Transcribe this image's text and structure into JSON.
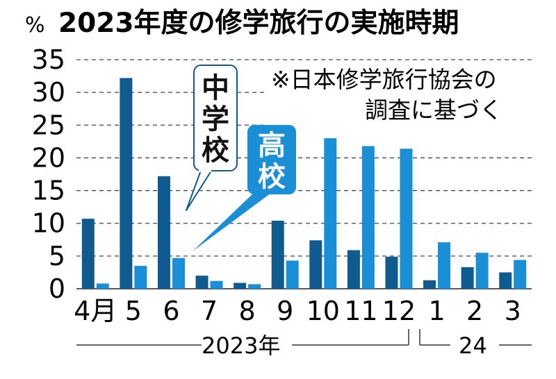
{
  "chart_data": {
    "type": "bar",
    "title": "2023年度の修学旅行の実施時期",
    "ylabel": "%",
    "ylim": [
      0,
      35
    ],
    "yticks": [
      0,
      5,
      10,
      15,
      20,
      25,
      30,
      35
    ],
    "grid": true,
    "categories": [
      "4月",
      "5",
      "6",
      "7",
      "8",
      "9",
      "10",
      "11",
      "12",
      "1",
      "2",
      "3"
    ],
    "series": [
      {
        "name": "中学校",
        "color": "#0f5a8f",
        "values": [
          10.7,
          32.2,
          17.2,
          2.0,
          0.9,
          10.4,
          7.4,
          5.9,
          4.9,
          1.3,
          3.3,
          2.5
        ]
      },
      {
        "name": "高校",
        "color": "#1a8fd6",
        "values": [
          0.8,
          3.5,
          4.7,
          1.2,
          0.7,
          4.3,
          23.0,
          21.8,
          21.4,
          7.1,
          5.5,
          4.4
        ]
      }
    ],
    "note_lines": [
      "※日本修学旅行協会の",
      "調査に基づく"
    ],
    "year_groups": [
      {
        "label": "2023年",
        "from": 0,
        "to": 8
      },
      {
        "label": "24",
        "from": 9,
        "to": 11
      }
    ]
  }
}
